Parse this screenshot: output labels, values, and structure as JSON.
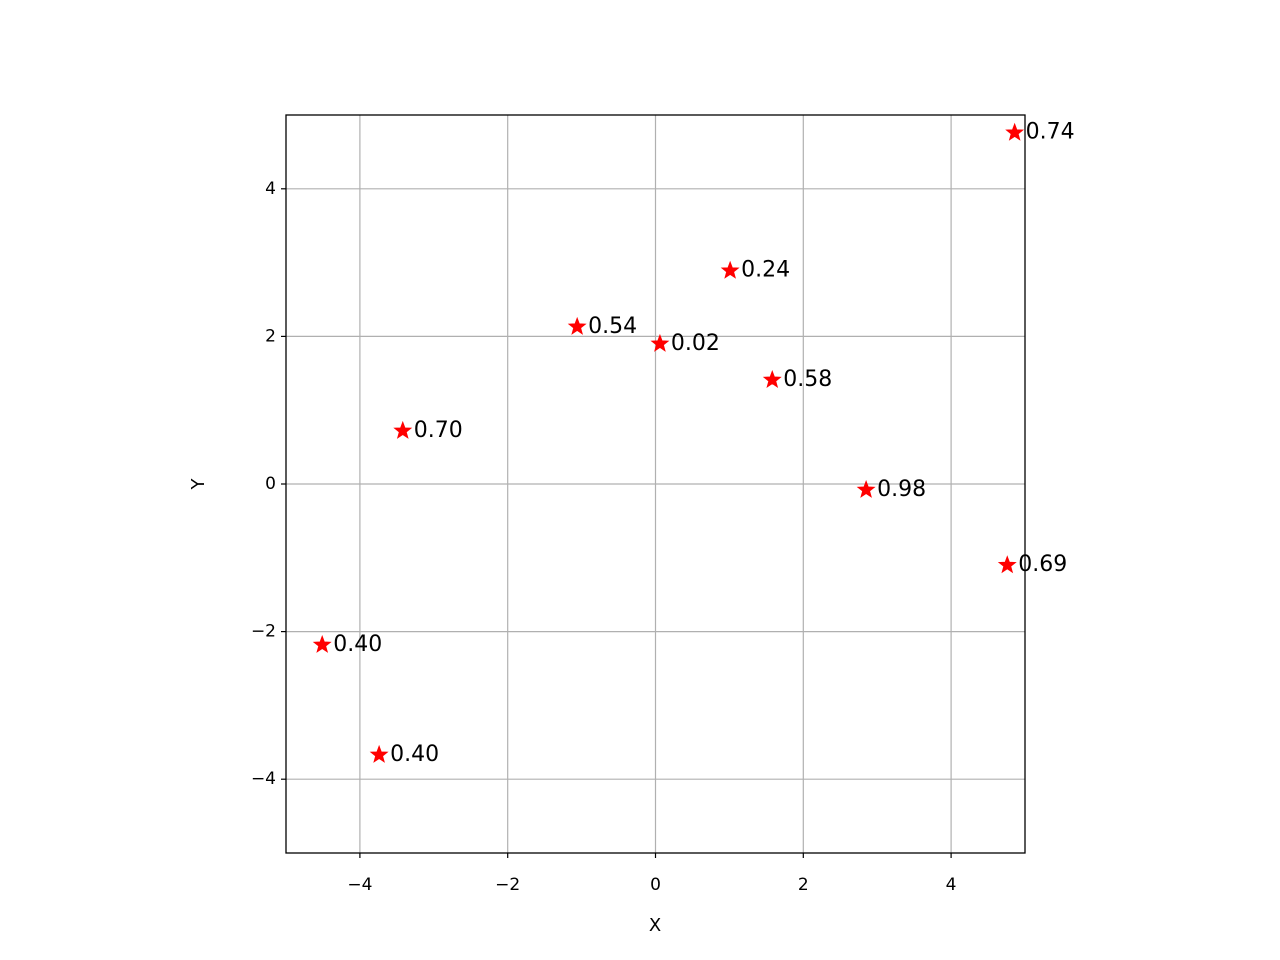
{
  "chart_data": {
    "type": "scatter",
    "marker": "star",
    "color": "#ff0000",
    "grid": true,
    "xlabel": "X",
    "ylabel": "Y",
    "xlim": [
      -5,
      5
    ],
    "ylim": [
      -5,
      5
    ],
    "xticks": [
      {
        "value": -4,
        "label": "−4"
      },
      {
        "value": -2,
        "label": "−2"
      },
      0,
      2,
      4
    ],
    "yticks": [
      {
        "value": -4,
        "label": "−4"
      },
      {
        "value": -2,
        "label": "−2"
      },
      0,
      2,
      4
    ],
    "x": [
      4.86,
      1.01,
      -1.06,
      0.06,
      1.58,
      -3.42,
      2.85,
      4.76,
      -4.51,
      -3.74
    ],
    "y": [
      4.76,
      2.89,
      2.13,
      1.9,
      1.41,
      0.72,
      -0.08,
      -1.1,
      -2.18,
      -3.67
    ],
    "values": [
      0.74,
      0.24,
      0.54,
      0.02,
      0.58,
      0.7,
      0.98,
      0.69,
      0.4,
      0.4
    ],
    "value_labels": [
      "0.74",
      "0.24",
      "0.54",
      "0.02",
      "0.58",
      "0.70",
      "0.98",
      "0.69",
      "0.40",
      "0.40"
    ]
  }
}
